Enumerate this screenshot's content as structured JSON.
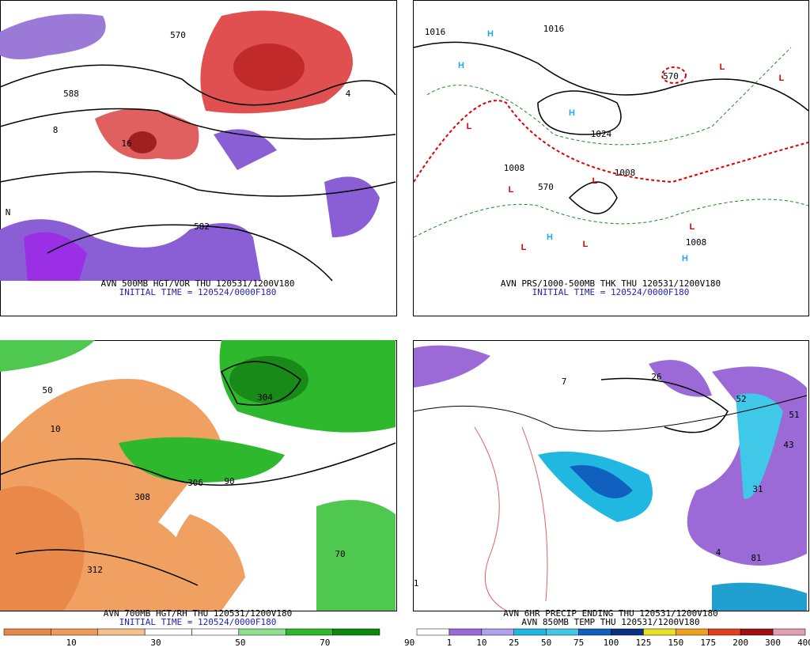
{
  "panels": [
    {
      "caption": "AVN 500MB HGT/VOR THU 120531/1200V180",
      "subcaption": "INITIAL TIME = 120524/0000F180",
      "labels": [
        "570",
        "582",
        "588",
        "16",
        "8",
        "4",
        "N"
      ]
    },
    {
      "caption": "AVN PRS/1000-500MB THK THU 120531/1200V180",
      "subcaption": "INITIAL TIME = 120524/0000F180",
      "labels": [
        "1016",
        "1016",
        "1024",
        "1008",
        "1008",
        "1008",
        "570",
        "570",
        "H",
        "H",
        "H",
        "H",
        "H",
        "L",
        "L",
        "L",
        "L",
        "L",
        "L",
        "L",
        "L"
      ]
    },
    {
      "caption": "AVN 700MB HGT/RH THU 120531/1200V180",
      "subcaption": "INITIAL TIME = 120524/0000F180",
      "labels": [
        "304",
        "306",
        "308",
        "312",
        "50",
        "90",
        "10",
        "70"
      ]
    },
    {
      "caption": "AVN 6HR PRECIP ENDING THU 120531/1200V180",
      "subcaption": "AVN 850MB TEMP THU 120531/1200V180",
      "labels": [
        "26",
        "52",
        "51",
        "43",
        "31",
        "4",
        "81",
        "7",
        "1"
      ]
    }
  ],
  "colorbars": [
    {
      "labels": [
        "10",
        "30",
        "50",
        "70",
        "90"
      ]
    },
    {
      "labels": [
        "1",
        "10",
        "25",
        "50",
        "75",
        "100",
        "125",
        "150",
        "175",
        "200",
        "300",
        "400"
      ]
    }
  ]
}
